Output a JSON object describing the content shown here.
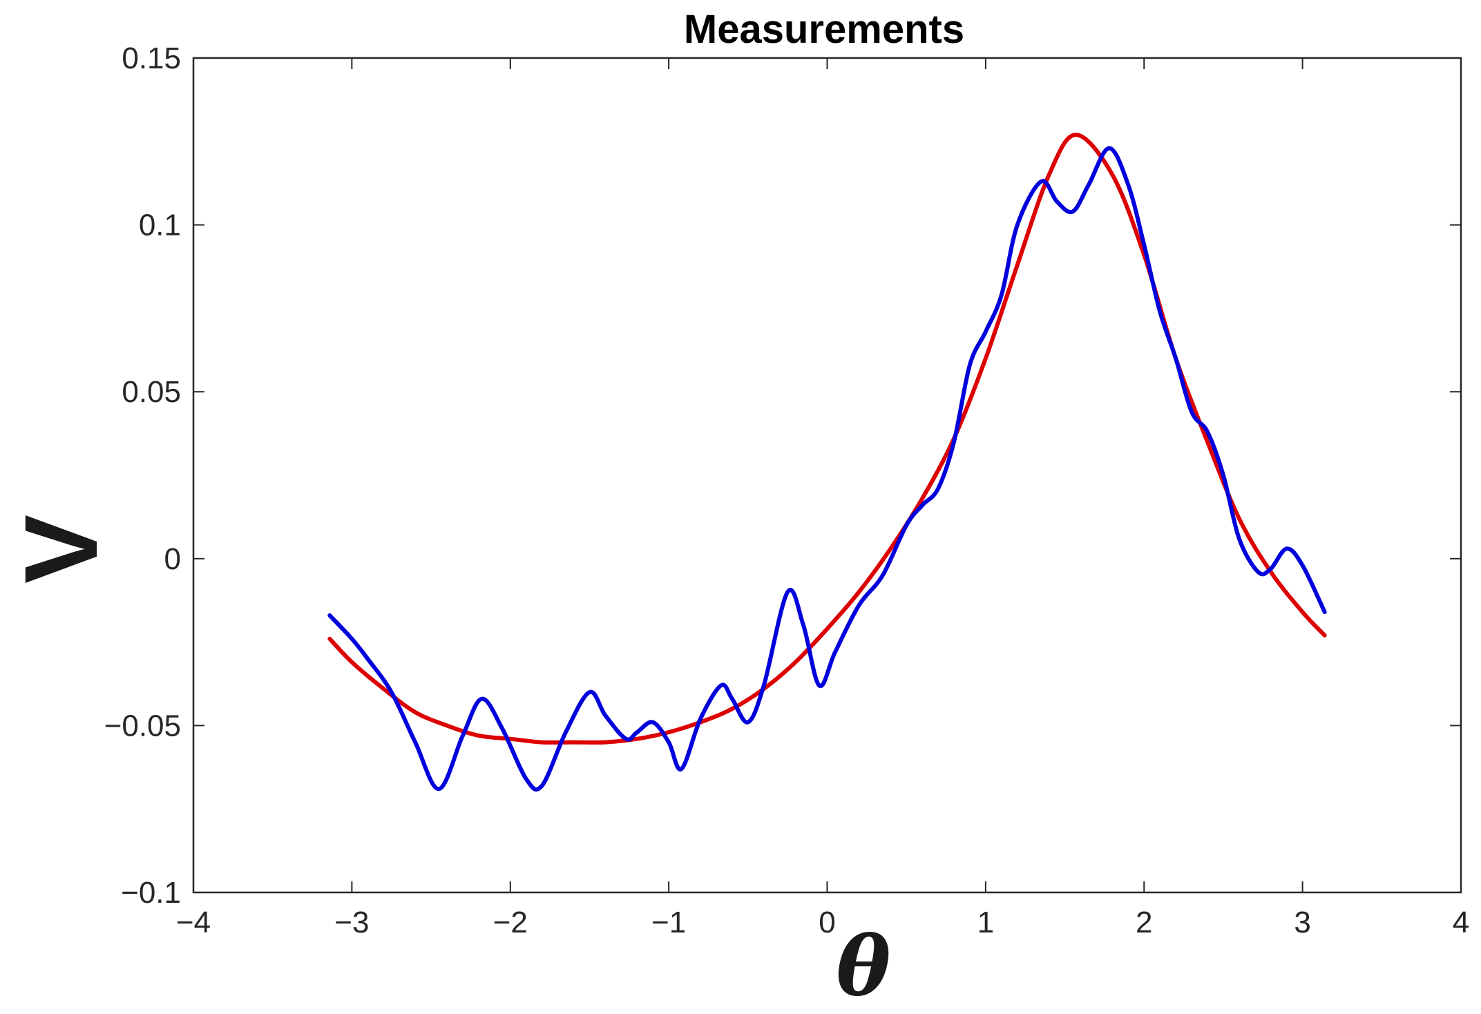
{
  "chart_data": {
    "type": "line",
    "title": "Measurements",
    "xlabel": "θ",
    "ylabel": "V",
    "xlim": [
      -4,
      4
    ],
    "ylim": [
      -0.1,
      0.15
    ],
    "xticks": [
      -4,
      -3,
      -2,
      -1,
      0,
      1,
      2,
      3,
      4
    ],
    "xtick_labels": [
      "−4",
      "−3",
      "−2",
      "−1",
      "0",
      "1",
      "2",
      "3",
      "4"
    ],
    "yticks": [
      -0.1,
      -0.05,
      0,
      0.05,
      0.1,
      0.15
    ],
    "ytick_labels": [
      "−0.1",
      "−0.05",
      "0",
      "0.05",
      "0.1",
      "0.15"
    ],
    "grid": false,
    "box": true,
    "series": [
      {
        "color": "#dd0000",
        "x": [
          -3.14,
          -3.0,
          -2.8,
          -2.6,
          -2.4,
          -2.2,
          -2.0,
          -1.8,
          -1.6,
          -1.4,
          -1.2,
          -1.0,
          -0.8,
          -0.6,
          -0.4,
          -0.2,
          0.0,
          0.2,
          0.4,
          0.6,
          0.8,
          1.0,
          1.2,
          1.4,
          1.57,
          1.8,
          2.0,
          2.2,
          2.4,
          2.6,
          2.8,
          3.0,
          3.14
        ],
        "values": [
          -0.024,
          -0.031,
          -0.039,
          -0.046,
          -0.05,
          -0.053,
          -0.054,
          -0.055,
          -0.055,
          -0.055,
          -0.054,
          -0.052,
          -0.049,
          -0.045,
          -0.039,
          -0.031,
          -0.021,
          -0.01,
          0.003,
          0.018,
          0.036,
          0.06,
          0.088,
          0.115,
          0.127,
          0.115,
          0.091,
          0.06,
          0.035,
          0.012,
          -0.004,
          -0.016,
          -0.023
        ]
      },
      {
        "color": "#0000dd",
        "x": [
          -3.14,
          -3.0,
          -2.9,
          -2.75,
          -2.6,
          -2.45,
          -2.3,
          -2.18,
          -2.05,
          -1.9,
          -1.8,
          -1.65,
          -1.5,
          -1.4,
          -1.27,
          -1.2,
          -1.1,
          -1.0,
          -0.92,
          -0.8,
          -0.67,
          -0.6,
          -0.5,
          -0.4,
          -0.25,
          -0.15,
          -0.05,
          0.05,
          0.2,
          0.35,
          0.5,
          0.6,
          0.7,
          0.8,
          0.9,
          1.0,
          1.1,
          1.2,
          1.35,
          1.45,
          1.55,
          1.65,
          1.78,
          1.9,
          2.0,
          2.1,
          2.2,
          2.3,
          2.4,
          2.5,
          2.6,
          2.72,
          2.8,
          2.9,
          3.0,
          3.14
        ],
        "values": [
          -0.017,
          -0.024,
          -0.03,
          -0.04,
          -0.055,
          -0.069,
          -0.053,
          -0.042,
          -0.051,
          -0.066,
          -0.068,
          -0.052,
          -0.04,
          -0.047,
          -0.054,
          -0.052,
          -0.049,
          -0.055,
          -0.063,
          -0.048,
          -0.038,
          -0.042,
          -0.049,
          -0.038,
          -0.01,
          -0.02,
          -0.038,
          -0.028,
          -0.014,
          -0.005,
          0.01,
          0.016,
          0.021,
          0.035,
          0.058,
          0.068,
          0.079,
          0.1,
          0.113,
          0.107,
          0.104,
          0.112,
          0.123,
          0.112,
          0.094,
          0.074,
          0.06,
          0.044,
          0.038,
          0.025,
          0.006,
          -0.004,
          -0.003,
          0.003,
          -0.002,
          -0.016
        ]
      }
    ]
  }
}
